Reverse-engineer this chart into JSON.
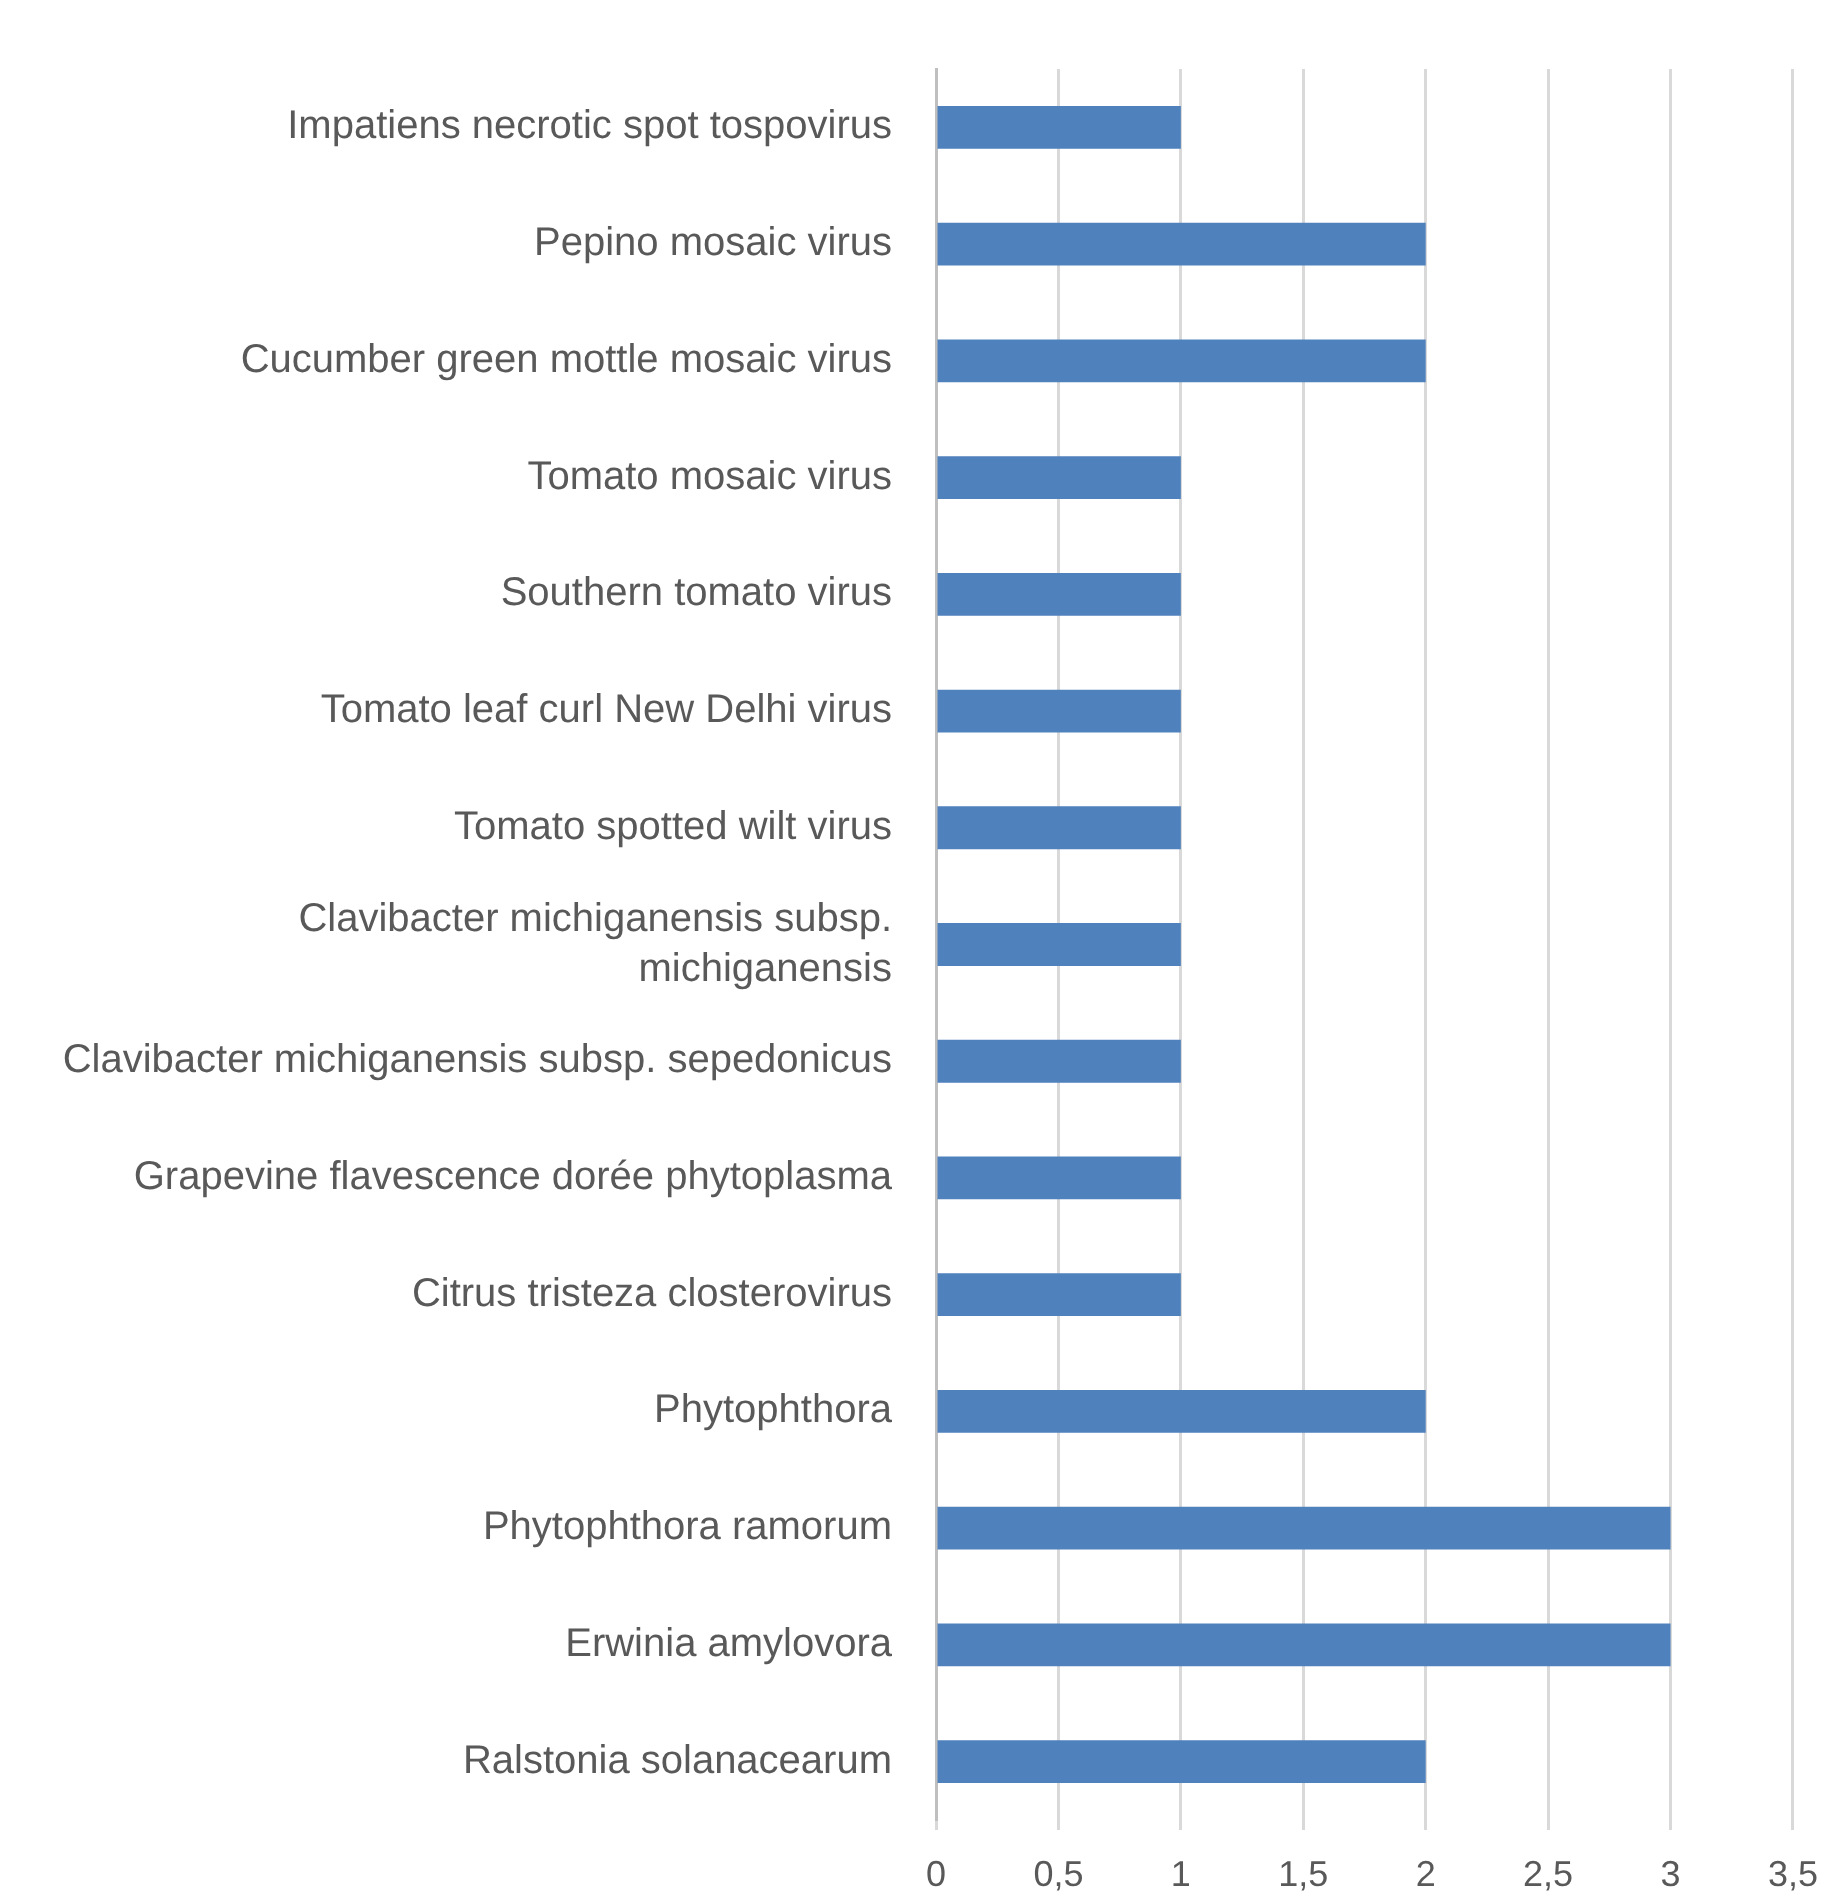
{
  "chart_data": {
    "type": "bar",
    "orientation": "horizontal",
    "categories": [
      "Impatiens necrotic spot tospovirus",
      "Pepino mosaic virus",
      "Cucumber green mottle mosaic virus",
      "Tomato mosaic virus",
      "Southern tomato virus",
      "Tomato leaf curl New Delhi virus",
      "Tomato spotted wilt virus",
      "Clavibacter michiganensis subsp. michiganensis",
      "Clavibacter michiganensis subsp. sepedonicus",
      "Grapevine flavescence dorée phytoplasma",
      "Citrus tristeza closterovirus",
      "Phytophthora",
      "Phytophthora ramorum",
      "Erwinia amylovora",
      "Ralstonia solanacearum"
    ],
    "values": [
      1,
      2,
      2,
      1,
      1,
      1,
      1,
      1,
      1,
      1,
      1,
      2,
      3,
      3,
      2
    ],
    "color": "#4f81bd",
    "xlim": [
      0,
      3.5
    ],
    "xticks": [
      0,
      {
        "value": 0.5,
        "label": "0,5"
      },
      1,
      {
        "value": 1.5,
        "label": "1,5"
      },
      2,
      {
        "value": 2.5,
        "label": "2,5"
      },
      3,
      {
        "value": 3.5,
        "label": "3,5"
      }
    ],
    "grid": "x"
  }
}
